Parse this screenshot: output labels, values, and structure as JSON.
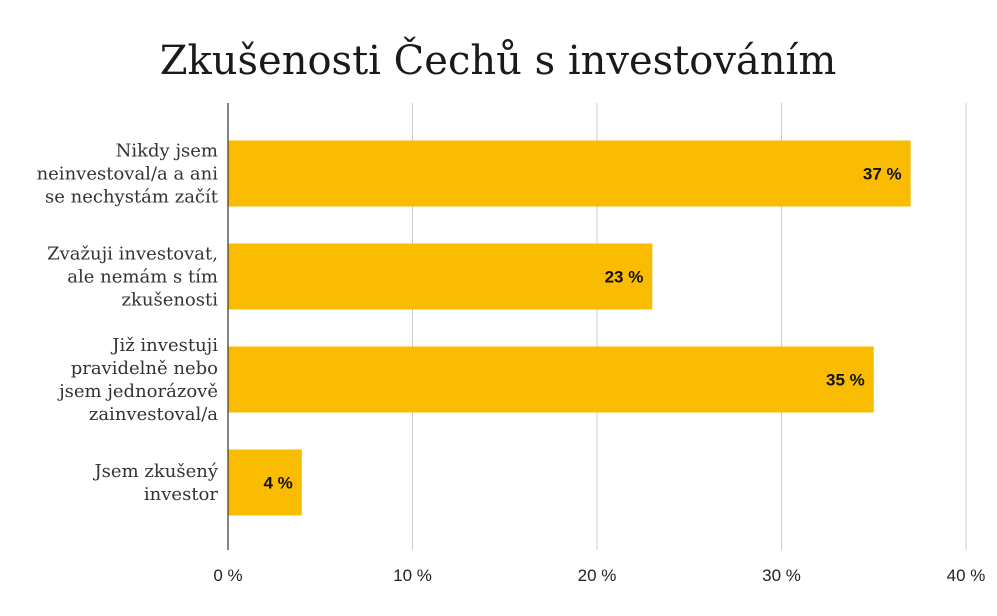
{
  "chart_data": {
    "type": "bar",
    "orientation": "horizontal",
    "title": "Zkušenosti Čechů s investováním",
    "categories": [
      [
        "Nikdy jsem",
        "neinvestoval/a a ani",
        "se nechystám začít"
      ],
      [
        "Zvažuji investovat,",
        "ale nemám s tím",
        "zkušenosti"
      ],
      [
        "Již investuji",
        "pravidelně nebo",
        "jsem jednorázově",
        "zainvestoval/a"
      ],
      [
        "Jsem zkušený",
        "investor"
      ]
    ],
    "values": [
      37,
      23,
      35,
      4
    ],
    "data_labels": [
      "37 %",
      "23 %",
      "35 %",
      "4 %"
    ],
    "xlim": [
      0,
      40
    ],
    "xticks": [
      0,
      10,
      20,
      30,
      40
    ],
    "xtick_labels": [
      "0 %",
      "10 %",
      "20 %",
      "30 %",
      "40 %"
    ],
    "xlabel": "",
    "ylabel": "",
    "grid": "vertical",
    "legend": "none",
    "colors": {
      "bar": "#F9BC00",
      "grid": "#cccccc",
      "axis": "#333333"
    }
  }
}
